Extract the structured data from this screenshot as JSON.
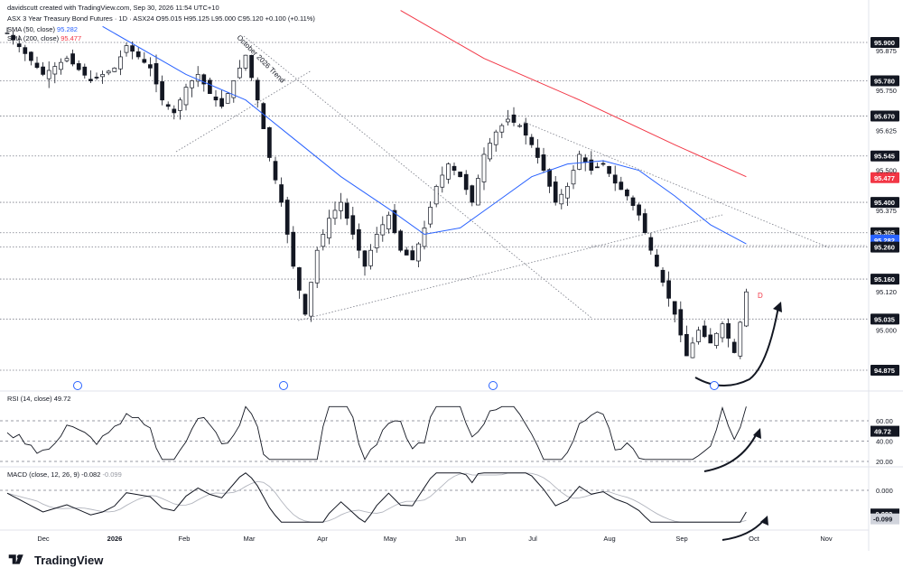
{
  "header": {
    "attribution": "davidscutt created with TradingView.com, Sep 30, 2026 11:54 UTC+10",
    "symbol_line": "ASX 3 Year Treasury Bond Futures · 1D · ASX24 O95.015 H95.125 L95.000 C95.120 +0.100 (+0.11%)",
    "sma50_label": "SMA (50, close)",
    "sma50_value": "95.282",
    "sma200_label": "SMA (200, close)",
    "sma200_value": "95.477"
  },
  "rsi": {
    "label": "RSI (14, close)",
    "value": "49.72",
    "ticks": [
      "60.00",
      "40.00",
      "20.00"
    ]
  },
  "macd": {
    "label": "MACD (close, 12, 26, 9)",
    "macd_value": "-0.082",
    "signal_value": "-0.099",
    "ticks": [
      "0.000"
    ]
  },
  "annotation": {
    "trend_label": "October 2026 Trend",
    "marker": "D"
  },
  "brand": {
    "name": "TradingView"
  },
  "colors": {
    "sma50": "#2962ff",
    "sma200": "#f23645",
    "up": "#ffffff",
    "down": "#131722",
    "grid": "#e0e3eb"
  },
  "chart_data": {
    "type": "candlestick",
    "x_ticks": [
      "Dec",
      "2026",
      "Feb",
      "Mar",
      "Apr",
      "May",
      "Jun",
      "Jul",
      "Aug",
      "Sep",
      "Oct",
      "Nov"
    ],
    "price_ticks": [
      "95.875",
      "95.750",
      "95.625",
      "95.500",
      "95.375",
      "95.120",
      "95.000"
    ],
    "levels": [
      {
        "label": "95.900",
        "value": 95.9,
        "style": "dark"
      },
      {
        "label": "95.780",
        "value": 95.78,
        "style": "dark"
      },
      {
        "label": "95.670",
        "value": 95.67,
        "style": "dark"
      },
      {
        "label": "95.545",
        "value": 95.545,
        "style": "dark"
      },
      {
        "label": "95.477",
        "value": 95.477,
        "style": "red"
      },
      {
        "label": "95.400",
        "value": 95.4,
        "style": "dark"
      },
      {
        "label": "95.305",
        "value": 95.305,
        "style": "dark"
      },
      {
        "label": "95.282",
        "value": 95.282,
        "style": "blue"
      },
      {
        "label": "95.260",
        "value": 95.26,
        "style": "dark"
      },
      {
        "label": "95.160",
        "value": 95.16,
        "style": "dark"
      },
      {
        "label": "95.035",
        "value": 95.035,
        "style": "dark"
      },
      {
        "label": "94.875",
        "value": 94.875,
        "style": "dark"
      }
    ],
    "rsi_levels": [
      {
        "label": "49.72",
        "value": 49.72,
        "style": "dark"
      }
    ],
    "macd_levels": [
      {
        "label": "-0.082",
        "value": -0.082,
        "style": "dark"
      },
      {
        "label": "-0.099",
        "value": -0.099,
        "style": "gray"
      }
    ],
    "price_path": [
      [
        0,
        95.93
      ],
      [
        6,
        95.8
      ],
      [
        10,
        95.85
      ],
      [
        14,
        95.78
      ],
      [
        18,
        95.82
      ],
      [
        20,
        95.89
      ],
      [
        24,
        95.82
      ],
      [
        26,
        95.72
      ],
      [
        28,
        95.68
      ],
      [
        30,
        95.76
      ],
      [
        32,
        95.8
      ],
      [
        34,
        95.74
      ],
      [
        36,
        95.7
      ],
      [
        38,
        95.78
      ],
      [
        40,
        95.86
      ],
      [
        42,
        95.72
      ],
      [
        44,
        95.54
      ],
      [
        46,
        95.4
      ],
      [
        48,
        95.2
      ],
      [
        50,
        95.05
      ],
      [
        52,
        95.25
      ],
      [
        54,
        95.35
      ],
      [
        56,
        95.4
      ],
      [
        58,
        95.3
      ],
      [
        60,
        95.2
      ],
      [
        62,
        95.3
      ],
      [
        64,
        95.36
      ],
      [
        66,
        95.25
      ],
      [
        68,
        95.22
      ],
      [
        70,
        95.32
      ],
      [
        72,
        95.45
      ],
      [
        74,
        95.52
      ],
      [
        76,
        95.48
      ],
      [
        78,
        95.4
      ],
      [
        80,
        95.55
      ],
      [
        82,
        95.62
      ],
      [
        84,
        95.66
      ],
      [
        86,
        95.64
      ],
      [
        88,
        95.58
      ],
      [
        90,
        95.5
      ],
      [
        92,
        95.4
      ],
      [
        94,
        95.45
      ],
      [
        96,
        95.55
      ],
      [
        98,
        95.5
      ],
      [
        100,
        95.52
      ],
      [
        102,
        95.46
      ],
      [
        104,
        95.42
      ],
      [
        106,
        95.36
      ],
      [
        108,
        95.25
      ],
      [
        110,
        95.15
      ],
      [
        112,
        95.05
      ],
      [
        114,
        94.92
      ],
      [
        116,
        95.0
      ],
      [
        118,
        94.96
      ],
      [
        120,
        95.02
      ],
      [
        122,
        94.93
      ],
      [
        124,
        95.12
      ]
    ],
    "sma50_path": [
      [
        16,
        95.95
      ],
      [
        30,
        95.8
      ],
      [
        40,
        95.72
      ],
      [
        48,
        95.6
      ],
      [
        56,
        95.48
      ],
      [
        64,
        95.38
      ],
      [
        70,
        95.3
      ],
      [
        76,
        95.32
      ],
      [
        82,
        95.4
      ],
      [
        88,
        95.48
      ],
      [
        94,
        95.52
      ],
      [
        100,
        95.53
      ],
      [
        106,
        95.5
      ],
      [
        112,
        95.42
      ],
      [
        118,
        95.33
      ],
      [
        124,
        95.27
      ]
    ],
    "sma200_path": [
      [
        66,
        96.0
      ],
      [
        80,
        95.85
      ],
      [
        96,
        95.72
      ],
      [
        112,
        95.58
      ],
      [
        124,
        95.48
      ]
    ]
  }
}
